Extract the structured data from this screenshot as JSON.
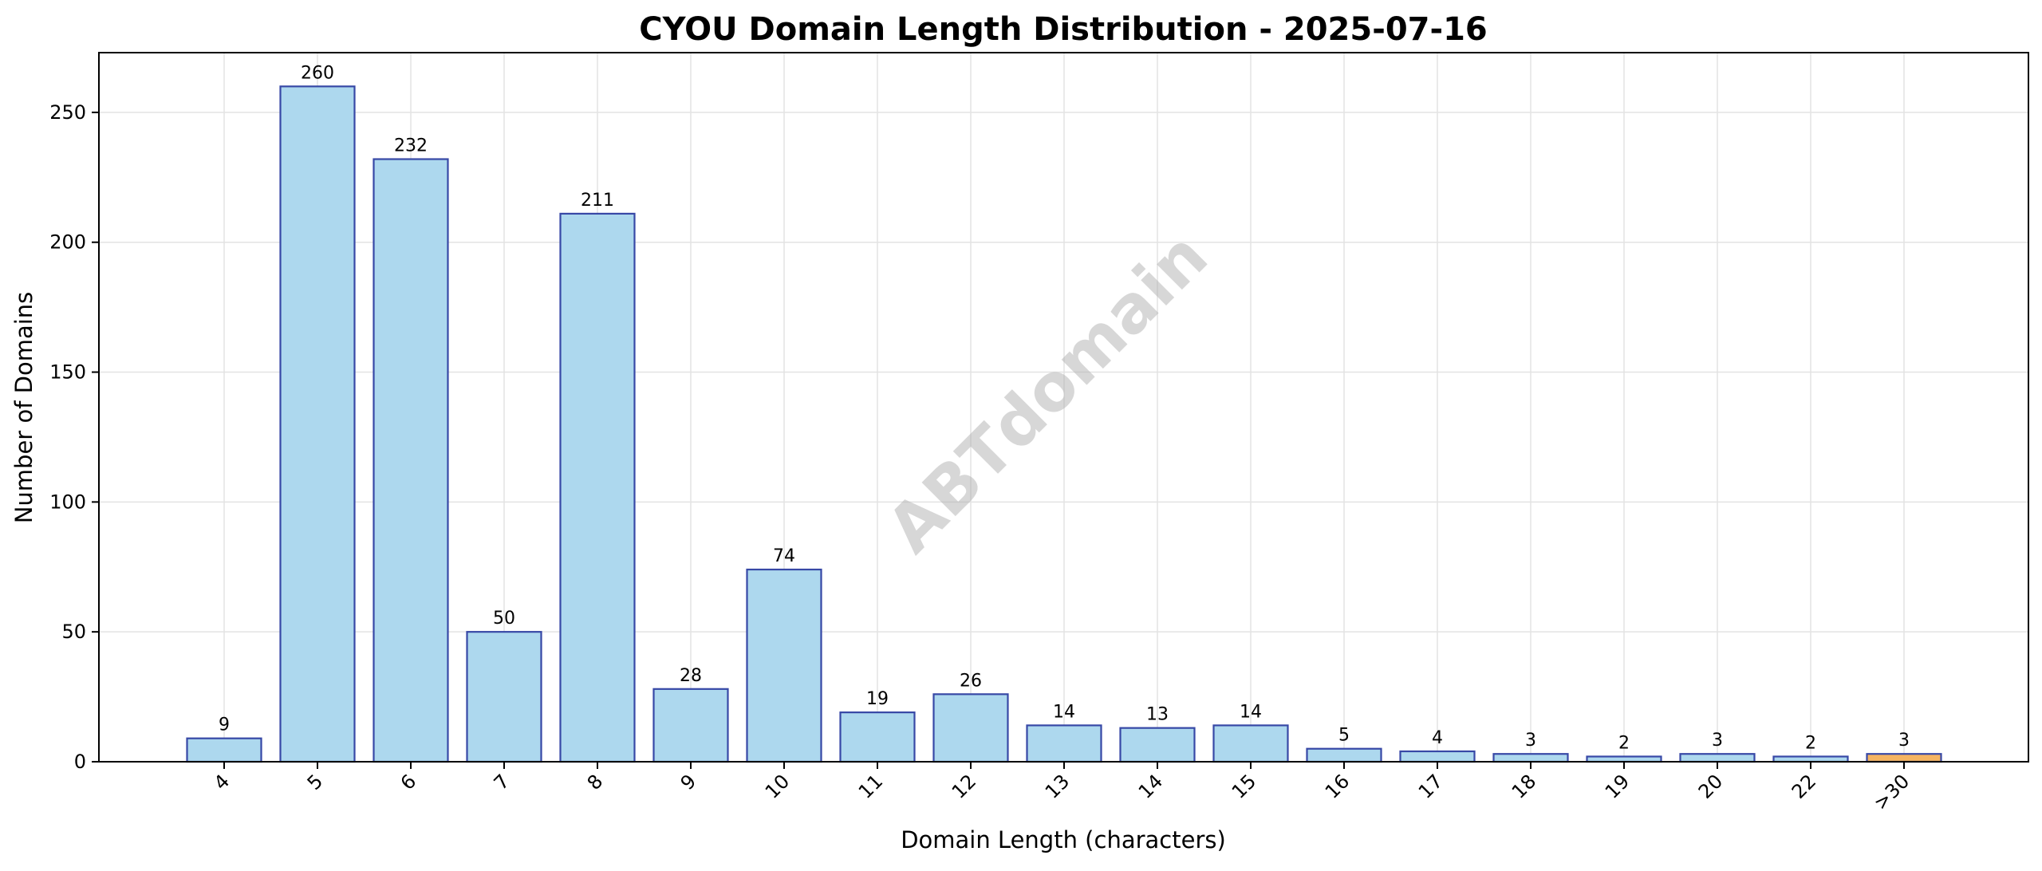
{
  "chart_data": {
    "type": "bar",
    "title": "CYOU Domain Length Distribution - 2025-07-16",
    "xlabel": "Domain Length (characters)",
    "ylabel": "Number of Domains",
    "categories": [
      "4",
      "5",
      "6",
      "7",
      "8",
      "9",
      "10",
      "11",
      "12",
      "13",
      "14",
      "15",
      "16",
      "17",
      "18",
      "19",
      "20",
      "22",
      ">30"
    ],
    "values": [
      9,
      260,
      232,
      50,
      211,
      28,
      74,
      19,
      26,
      14,
      13,
      14,
      5,
      4,
      3,
      2,
      3,
      2,
      3
    ],
    "ylim": [
      0,
      273
    ],
    "yticks": [
      0,
      50,
      100,
      150,
      200,
      250
    ],
    "grid": true,
    "bar_color": "#add8ee",
    "highlight_color": "#f5b461",
    "highlight_category": ">30",
    "edge_color": "#3748a6",
    "watermark": "ABTdomain"
  }
}
